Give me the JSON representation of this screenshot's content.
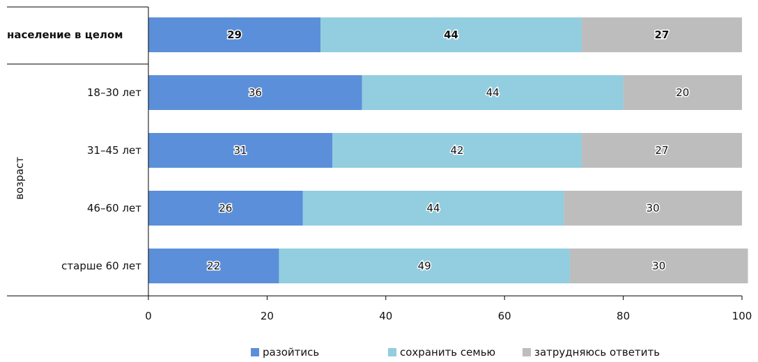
{
  "chart_data": {
    "type": "bar",
    "orientation": "horizontal",
    "stacked": true,
    "categories": [
      "население в целом",
      "18–30 лет",
      "31–45 лет",
      "46–60 лет",
      "старше 60 лет"
    ],
    "group_label": "возраст",
    "series": [
      {
        "name": "разойтись",
        "color": "#5b8fd9",
        "values": [
          29,
          36,
          31,
          26,
          22
        ]
      },
      {
        "name": "сохранить семью",
        "color": "#92cde0",
        "values": [
          44,
          44,
          42,
          44,
          49
        ]
      },
      {
        "name": "затрудняюсь ответить",
        "color": "#bdbdbd",
        "values": [
          27,
          20,
          27,
          30,
          30
        ]
      }
    ],
    "xlim": [
      0,
      100
    ],
    "xticks": [
      "0",
      "20",
      "40",
      "60",
      "80",
      "100"
    ],
    "grid": false,
    "legend_position": "bottom"
  }
}
